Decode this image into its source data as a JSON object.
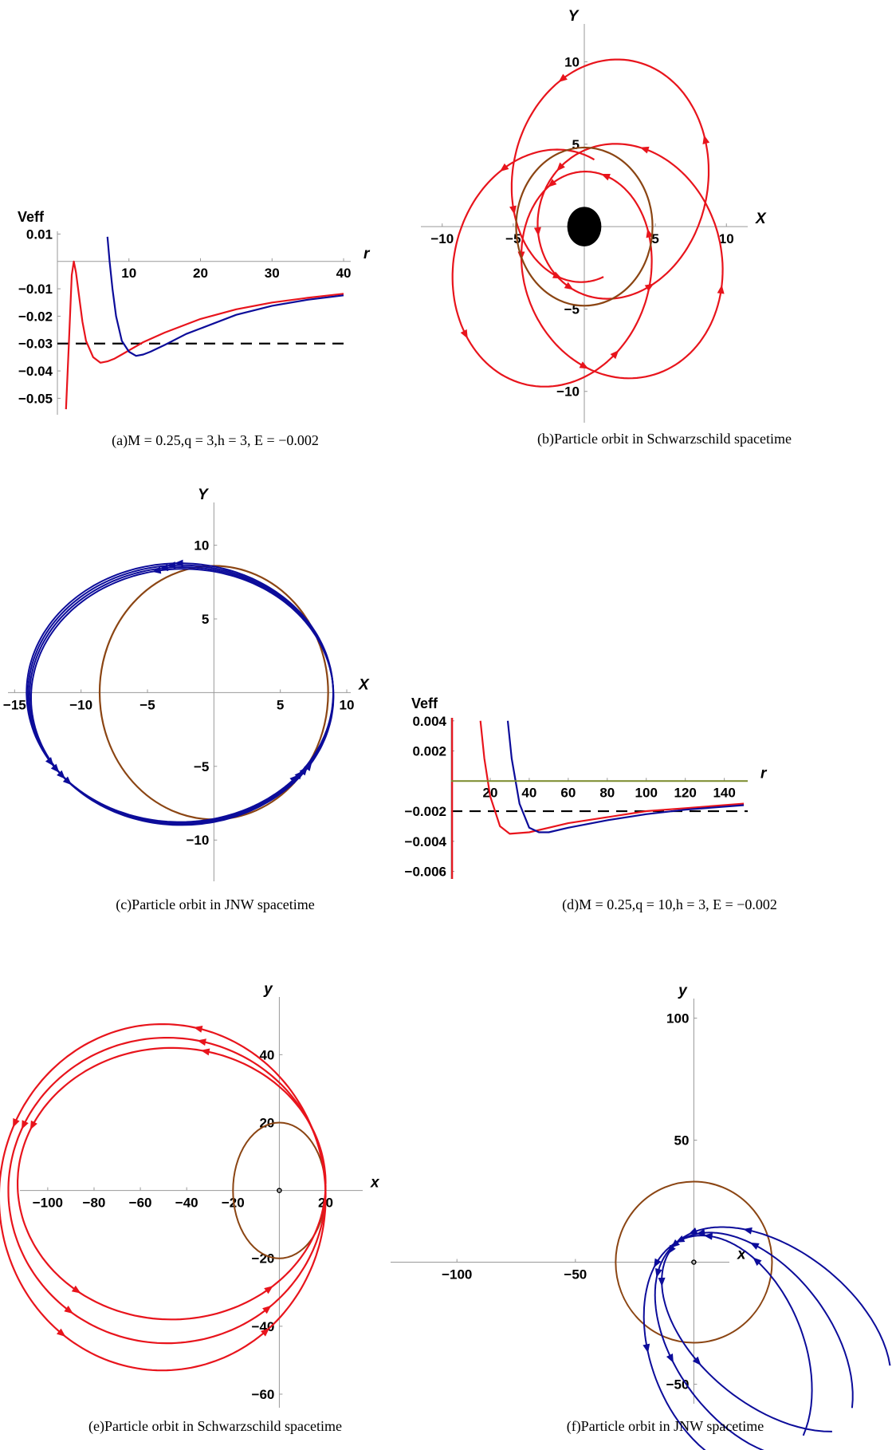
{
  "colors": {
    "red": "#e8141c",
    "blue": "#0c0c9a",
    "brown": "#8b4513",
    "olive": "#7a8a2a",
    "black": "#000000"
  },
  "chart_data": [
    {
      "id": "a",
      "type": "line",
      "caption": "(a)M = 0.25,q = 3,h = 3, E = −0.002",
      "ylabel": "Veff",
      "xlabel": "r",
      "xlim": [
        0,
        41
      ],
      "ylim": [
        -0.056,
        0.011
      ],
      "xticks": [
        "10",
        "20",
        "30",
        "40"
      ],
      "yticks": [
        "0.01",
        "−0.01",
        "−0.02",
        "−0.03",
        "−0.04",
        "−0.05"
      ],
      "dashed_level": -0.03,
      "series": [
        {
          "color": "red",
          "x": [
            1.2,
            1.6,
            2.0,
            2.3,
            2.6,
            3.0,
            3.5,
            4.0,
            5.0,
            6.0,
            7.0,
            8.0,
            9.0,
            10,
            12,
            15,
            20,
            25,
            30,
            35,
            40
          ],
          "y": [
            -0.054,
            -0.03,
            -0.005,
            0.0,
            -0.004,
            -0.012,
            -0.022,
            -0.029,
            -0.035,
            -0.037,
            -0.0365,
            -0.0355,
            -0.034,
            -0.0325,
            -0.0295,
            -0.026,
            -0.021,
            -0.0175,
            -0.015,
            -0.0133,
            -0.0118
          ]
        },
        {
          "color": "blue",
          "x": [
            7.0,
            7.3,
            7.7,
            8.2,
            9.0,
            10,
            11,
            12,
            13,
            15,
            18,
            20,
            25,
            30,
            35,
            40
          ],
          "y": [
            0.009,
            0.0,
            -0.01,
            -0.02,
            -0.029,
            -0.033,
            -0.0345,
            -0.034,
            -0.033,
            -0.0305,
            -0.0265,
            -0.0245,
            -0.0195,
            -0.0162,
            -0.014,
            -0.0124
          ]
        }
      ]
    },
    {
      "id": "b",
      "type": "line",
      "caption": "(b)Particle orbit in Schwarzschild spacetime",
      "xlabel": "X",
      "ylabel": "Y",
      "xlim": [
        -11.5,
        11.5
      ],
      "ylim": [
        -11.9,
        12.3
      ],
      "xticks": [
        "−10",
        "−5",
        "5",
        "10"
      ],
      "yticks": [
        "10",
        "5",
        "−5",
        "−10"
      ],
      "orbit": {
        "color": "red",
        "a": 7.1,
        "e": 0.53,
        "precession_deg": 75,
        "start_deg": 80,
        "turns": 3.6
      },
      "reference_circle": {
        "color": "brown",
        "r": 4.8
      },
      "horizon_disk": {
        "color": "black",
        "r": 1.2
      }
    },
    {
      "id": "c",
      "type": "line",
      "caption": "(c)Particle orbit in JNW spacetime",
      "xlabel": "X",
      "ylabel": "Y",
      "xlim": [
        -15.5,
        10.3
      ],
      "ylim": [
        -12.8,
        12.9
      ],
      "xticks": [
        "−15",
        "−10",
        "−5",
        "5",
        "10"
      ],
      "yticks": [
        "10",
        "5",
        "−5",
        "−10"
      ],
      "orbits": [
        {
          "color": "blue",
          "rp": 8.98,
          "ra": 14.1,
          "prec": 0
        },
        {
          "color": "blue",
          "rp": 8.98,
          "ra": 14.0,
          "prec": 3
        },
        {
          "color": "blue",
          "rp": 8.98,
          "ra": 13.9,
          "prec": 6
        },
        {
          "color": "blue",
          "rp": 8.98,
          "ra": 13.8,
          "prec": 9
        }
      ],
      "reference_circle": {
        "color": "brown",
        "r": 8.6
      }
    },
    {
      "id": "d",
      "type": "line",
      "caption": "(d)M = 0.25,q = 10,h = 3, E = −0.002",
      "ylabel": "Veff",
      "xlabel": "r",
      "xlim": [
        0,
        152
      ],
      "ylim": [
        -0.0065,
        0.0042
      ],
      "xticks": [
        "20",
        "40",
        "60",
        "80",
        "100",
        "120",
        "140"
      ],
      "yticks": [
        "0.004",
        "0.002",
        "−0.002",
        "−0.004",
        "−0.006"
      ],
      "dashed_level": -0.002,
      "series": [
        {
          "color": "red",
          "x": [
            15,
            17,
            20,
            25,
            30,
            40,
            50,
            60,
            80,
            100,
            120,
            150
          ],
          "y": [
            0.004,
            0.0015,
            -0.001,
            -0.003,
            -0.0035,
            -0.0034,
            -0.0031,
            -0.0028,
            -0.0024,
            -0.002,
            -0.0018,
            -0.0015
          ]
        },
        {
          "color": "blue",
          "x": [
            29,
            31,
            35,
            40,
            45,
            50,
            60,
            80,
            100,
            120,
            150
          ],
          "y": [
            0.004,
            0.0015,
            -0.0015,
            -0.0031,
            -0.0034,
            -0.0034,
            -0.0031,
            -0.0026,
            -0.0022,
            -0.0019,
            -0.0016
          ]
        },
        {
          "color": "red",
          "x": [
            0.5,
            0.5
          ],
          "y": [
            0.0042,
            -0.0065
          ]
        },
        {
          "color": "olive",
          "x": [
            0,
            152
          ],
          "y": [
            0.0,
            0.0
          ]
        }
      ]
    },
    {
      "id": "e",
      "type": "line",
      "caption": "(e)Particle orbit in Schwarzschild spacetime",
      "xlabel": "x",
      "ylabel": "y",
      "xlim": [
        -112,
        36
      ],
      "ylim": [
        -64,
        57
      ],
      "xticks": [
        "−100",
        "−80",
        "−60",
        "−40",
        "−20",
        "20"
      ],
      "yticks": [
        "40",
        "20",
        "−20",
        "−40",
        "−60"
      ],
      "orbits": [
        {
          "color": "red",
          "rp": 20,
          "ra": 121,
          "b": 51
        },
        {
          "color": "red",
          "rp": 20,
          "ra": 117,
          "b": 45
        },
        {
          "color": "red",
          "rp": 20,
          "ra": 113,
          "b": 40
        }
      ],
      "reference_circle": {
        "color": "brown",
        "r": 20
      }
    },
    {
      "id": "f",
      "type": "line",
      "caption": "(f)Particle orbit in JNW spacetime",
      "xlabel": "x",
      "ylabel": "y",
      "xlim": [
        -128,
        15
      ],
      "ylim": [
        -58,
        108
      ],
      "xticks": [
        "−100",
        "−50"
      ],
      "yticks": [
        "100",
        "50",
        "−50"
      ],
      "orbits": [
        {
          "color": "blue",
          "rp": 13,
          "ra": 120,
          "tilt": 40
        },
        {
          "color": "blue",
          "rp": 13,
          "ra": 117,
          "tilt": 55
        },
        {
          "color": "blue",
          "rp": 13,
          "ra": 112,
          "tilt": 70
        }
      ],
      "reference_circle": {
        "color": "brown",
        "r": 33
      }
    }
  ]
}
